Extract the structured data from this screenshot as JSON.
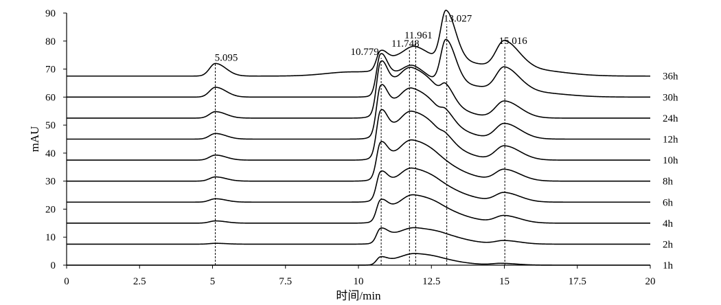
{
  "chart_data": {
    "type": "line",
    "title": "",
    "xlabel": "时间/min",
    "ylabel": "mAU",
    "xlim": [
      0,
      20
    ],
    "ylim": [
      0,
      90
    ],
    "xticks": [
      0,
      2.5,
      5,
      7.5,
      10,
      12.5,
      15,
      17.5,
      20
    ],
    "xtick_labels": [
      "0",
      "2.5",
      "5",
      "7.5",
      "10",
      "12.5",
      "15",
      "17.5",
      "20"
    ],
    "yticks": [
      0,
      10,
      20,
      30,
      40,
      50,
      60,
      70,
      80,
      90
    ],
    "ytick_labels": [
      "0",
      "10",
      "20",
      "30",
      "40",
      "50",
      "60",
      "70",
      "80",
      "90"
    ],
    "grid": false,
    "legend": "series labels at right end of each trace",
    "peak_annotations": [
      {
        "label": "5.095",
        "x": 5.095,
        "y": 72
      },
      {
        "label": "10.779",
        "x": 10.779,
        "y": 74
      },
      {
        "label": "11.748",
        "x": 11.748,
        "y": 77
      },
      {
        "label": "11.961",
        "x": 11.961,
        "y": 80
      },
      {
        "label": "13.027",
        "x": 13.027,
        "y": 86
      },
      {
        "label": "15.016",
        "x": 15.016,
        "y": 78
      }
    ],
    "series": [
      {
        "name": "1h",
        "baseline": 0,
        "peaks": [
          [
            10.75,
            2.5,
            0.13
          ],
          [
            11.4,
            1.5,
            0.4
          ],
          [
            11.95,
            2.8,
            0.45
          ],
          [
            12.8,
            1.0,
            0.5
          ],
          [
            14.9,
            0.6,
            0.3
          ]
        ]
      },
      {
        "name": "2h",
        "baseline": 7.5,
        "peaks": [
          [
            5.1,
            0.3,
            0.2
          ],
          [
            10.75,
            4.5,
            0.13
          ],
          [
            11.3,
            2.5,
            0.4
          ],
          [
            12.0,
            4.0,
            0.5
          ],
          [
            12.9,
            1.5,
            0.5
          ],
          [
            15.0,
            1.2,
            0.3
          ]
        ]
      },
      {
        "name": "4h",
        "baseline": 15,
        "peaks": [
          [
            5.1,
            0.8,
            0.2
          ],
          [
            10.75,
            6.5,
            0.13
          ],
          [
            11.3,
            4.0,
            0.4
          ],
          [
            11.9,
            6.5,
            0.45
          ],
          [
            12.8,
            3.0,
            0.55
          ],
          [
            15.0,
            2.5,
            0.3
          ]
        ]
      },
      {
        "name": "6h",
        "baseline": 22.5,
        "peaks": [
          [
            5.1,
            1.2,
            0.2
          ],
          [
            10.75,
            8.5,
            0.13
          ],
          [
            11.3,
            5.0,
            0.4
          ],
          [
            11.85,
            7.5,
            0.45
          ],
          [
            12.75,
            3.5,
            0.55
          ],
          [
            15.0,
            3.2,
            0.3
          ]
        ]
      },
      {
        "name": "8h",
        "baseline": 30,
        "peaks": [
          [
            5.1,
            1.5,
            0.2
          ],
          [
            10.75,
            11.0,
            0.13
          ],
          [
            11.3,
            6.0,
            0.4
          ],
          [
            11.85,
            9.0,
            0.45
          ],
          [
            12.7,
            4.0,
            0.55
          ],
          [
            15.0,
            4.0,
            0.3
          ]
        ]
      },
      {
        "name": "10h",
        "baseline": 37.5,
        "peaks": [
          [
            5.1,
            1.8,
            0.2
          ],
          [
            10.75,
            14.0,
            0.13
          ],
          [
            11.3,
            8.0,
            0.4
          ],
          [
            11.85,
            10.0,
            0.45
          ],
          [
            12.6,
            4.5,
            0.5
          ],
          [
            13.0,
            1.5,
            0.15
          ],
          [
            15.0,
            5.0,
            0.3
          ]
        ]
      },
      {
        "name": "12h",
        "baseline": 45,
        "peaks": [
          [
            5.1,
            2.0,
            0.2
          ],
          [
            10.75,
            15.0,
            0.13
          ],
          [
            11.3,
            9.0,
            0.4
          ],
          [
            11.85,
            10.0,
            0.45
          ],
          [
            12.6,
            4.5,
            0.5
          ],
          [
            13.0,
            2.5,
            0.15
          ],
          [
            15.0,
            5.5,
            0.3
          ]
        ]
      },
      {
        "name": "24h",
        "baseline": 52.5,
        "peaks": [
          [
            5.1,
            2.3,
            0.2
          ],
          [
            10.75,
            16.0,
            0.13
          ],
          [
            11.3,
            9.0,
            0.4
          ],
          [
            11.85,
            10.0,
            0.45
          ],
          [
            12.6,
            4.0,
            0.5
          ],
          [
            13.0,
            4.5,
            0.15
          ],
          [
            15.0,
            6.0,
            0.3
          ]
        ]
      },
      {
        "name": "30h",
        "baseline": 60,
        "peaks": [
          [
            5.1,
            3.5,
            0.2
          ],
          [
            10.75,
            13.0,
            0.13
          ],
          [
            11.35,
            7.0,
            0.4
          ],
          [
            11.95,
            6.0,
            0.4
          ],
          [
            13.0,
            16.0,
            0.18
          ],
          [
            13.7,
            4.0,
            0.6
          ],
          [
            15.0,
            8.5,
            0.28
          ],
          [
            16.0,
            1.5,
            0.6
          ]
        ]
      },
      {
        "name": "36h",
        "baseline": 67.5,
        "peaks": [
          [
            5.1,
            4.5,
            0.2
          ],
          [
            9.8,
            1.5,
            0.9
          ],
          [
            10.75,
            6.0,
            0.13
          ],
          [
            11.4,
            5.0,
            0.45
          ],
          [
            12.0,
            6.0,
            0.4
          ],
          [
            13.0,
            18.0,
            0.18
          ],
          [
            13.7,
            4.5,
            0.6
          ],
          [
            15.0,
            10.0,
            0.28
          ],
          [
            16.0,
            2.0,
            0.6
          ]
        ]
      }
    ],
    "vertical_reference_lines": [
      5.095,
      10.779,
      11.748,
      11.961,
      13.027,
      15.016
    ]
  }
}
